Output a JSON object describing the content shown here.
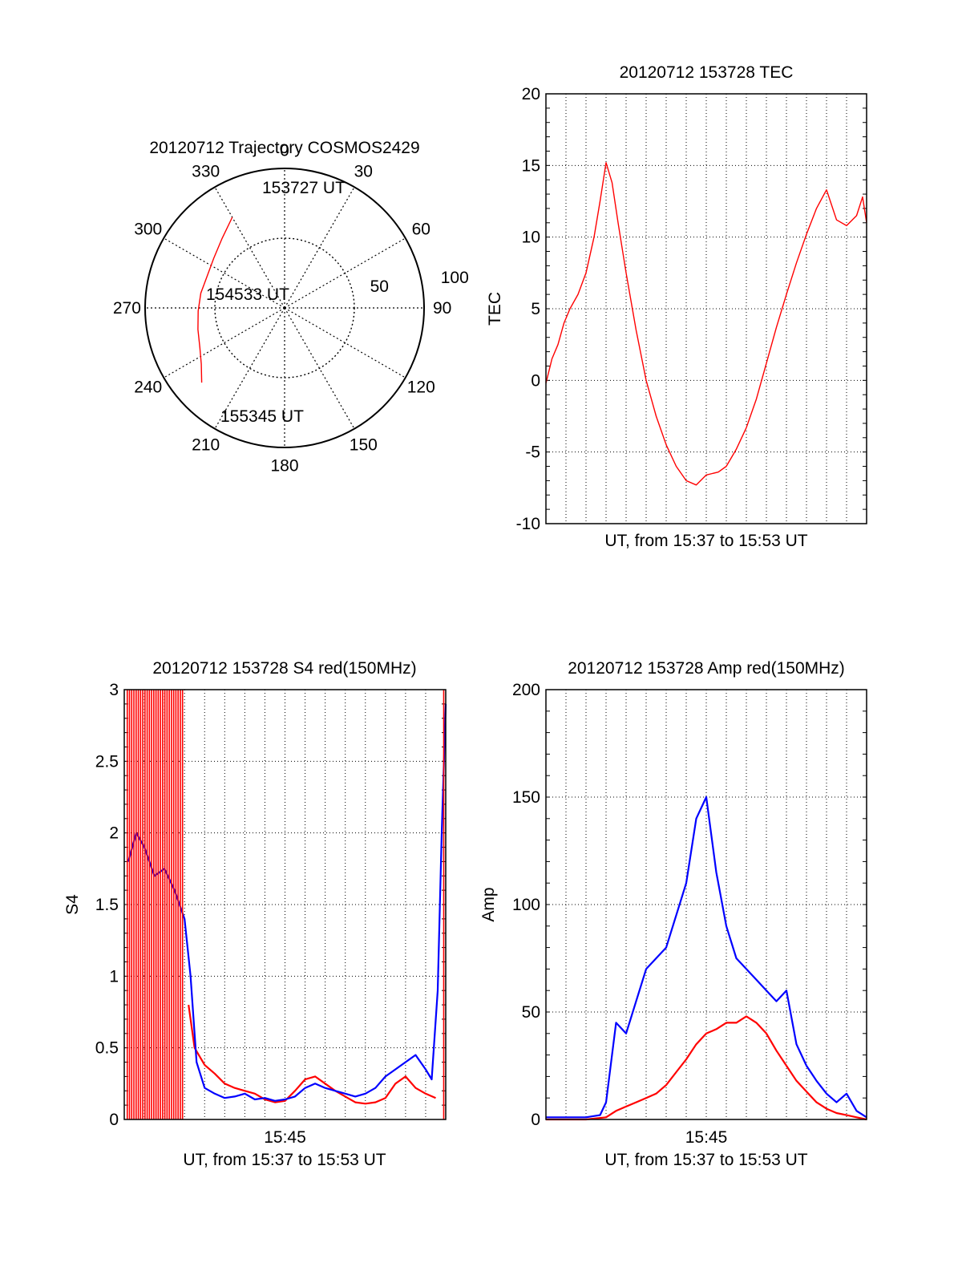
{
  "chart_data": [
    {
      "type": "polar",
      "title": "20120712 Trajectory COSMOS2429",
      "angle_labels": [
        "0",
        "30",
        "60",
        "90",
        "120",
        "150",
        "180",
        "210",
        "240",
        "270",
        "300",
        "330"
      ],
      "radial_labels": [
        "50",
        "100"
      ],
      "rlim": [
        0,
        100
      ],
      "grid": true,
      "series": [
        {
          "color": "#ff0000",
          "points": [
            {
              "az": 330,
              "zd": 75
            },
            {
              "az": 318,
              "zd": 67
            },
            {
              "az": 305,
              "zd": 62
            },
            {
              "az": 292,
              "zd": 60
            },
            {
              "az": 280,
              "zd": 61
            },
            {
              "az": 268,
              "zd": 62
            },
            {
              "az": 256,
              "zd": 64
            },
            {
              "az": 245,
              "zd": 67
            },
            {
              "az": 236,
              "zd": 72
            },
            {
              "az": 228,
              "zd": 80
            }
          ]
        }
      ],
      "annotations": [
        {
          "text": "153727 UT",
          "az": 342,
          "zd": 84
        },
        {
          "text": "154533 UT",
          "az": 288,
          "zd": 21
        },
        {
          "text": "155345 UT",
          "az": 204,
          "zd": 84
        }
      ]
    },
    {
      "type": "line",
      "title": "20120712 153728 TEC",
      "xlabel": "UT, from 15:37 to 15:53 UT",
      "ylabel": "TEC",
      "xlim": [
        0,
        16
      ],
      "ylim": [
        -10,
        20
      ],
      "yticks": [
        "20",
        "15",
        "10",
        "5",
        "0",
        "-5",
        "-10"
      ],
      "grid": true,
      "series": [
        {
          "color": "#ff0000",
          "x": [
            0,
            0.3,
            0.6,
            0.9,
            1.2,
            1.6,
            2.0,
            2.4,
            2.7,
            3.0,
            3.3,
            3.6,
            4.0,
            4.5,
            5.0,
            5.5,
            6.0,
            6.5,
            7.0,
            7.5,
            8.0,
            8.3,
            8.6,
            9.0,
            9.5,
            10.0,
            10.5,
            11.0,
            11.5,
            12.0,
            12.5,
            13.0,
            13.5,
            14.0,
            14.5,
            15.0,
            15.5,
            15.8,
            16.0
          ],
          "y": [
            -0.2,
            1.5,
            2.5,
            4,
            5,
            6,
            7.5,
            10,
            12.5,
            15.2,
            13.8,
            11,
            7.5,
            3.5,
            0,
            -2.5,
            -4.5,
            -6,
            -7,
            -7.3,
            -6.6,
            -6.5,
            -6.4,
            -6,
            -4.8,
            -3.3,
            -1.3,
            1.2,
            3.7,
            6,
            8.2,
            10.2,
            12,
            13.3,
            11.2,
            10.8,
            11.5,
            12.8,
            11
          ]
        }
      ]
    },
    {
      "type": "line",
      "title": "20120712 153728 S4 red(150MHz)",
      "xlabel": "UT, from 15:37 to 15:53 UT",
      "ylabel": "S4",
      "xlim": [
        0,
        16
      ],
      "ylim": [
        0,
        3
      ],
      "yticks": [
        "3",
        "2.5",
        "2",
        "1.5",
        "1",
        "0.5",
        "0"
      ],
      "xticks": [
        {
          "value": 8,
          "label": "15:45"
        }
      ],
      "grid": true,
      "series": [
        {
          "color": "#ff0000",
          "x": [
            3.2,
            3.5,
            4.0,
            4.5,
            5.0,
            5.5,
            6.0,
            6.5,
            7.0,
            7.5,
            8.0,
            8.5,
            9.0,
            9.5,
            10.0,
            10.5,
            11.0,
            11.5,
            12.0,
            12.5,
            13.0,
            13.5,
            14.0,
            14.5,
            15.0,
            15.5
          ],
          "y": [
            0.8,
            0.5,
            0.38,
            0.32,
            0.25,
            0.22,
            0.2,
            0.18,
            0.14,
            0.12,
            0.13,
            0.2,
            0.28,
            0.3,
            0.25,
            0.2,
            0.16,
            0.12,
            0.11,
            0.12,
            0.15,
            0.25,
            0.3,
            0.22,
            0.18,
            0.15
          ]
        },
        {
          "color": "#0000ff",
          "x": [
            0.2,
            0.6,
            1.0,
            1.5,
            2.0,
            2.5,
            3.0,
            3.3,
            3.6,
            4.0,
            4.5,
            5.0,
            5.5,
            6.0,
            6.5,
            7.0,
            7.5,
            8.0,
            8.5,
            9.0,
            9.5,
            10.0,
            10.5,
            11.0,
            11.5,
            12.0,
            12.5,
            13.0,
            13.5,
            14.0,
            14.5,
            15.0,
            15.3,
            15.6,
            15.8,
            16.0
          ],
          "y": [
            1.8,
            2.0,
            1.9,
            1.7,
            1.75,
            1.6,
            1.4,
            1.0,
            0.4,
            0.22,
            0.18,
            0.15,
            0.16,
            0.18,
            0.14,
            0.15,
            0.13,
            0.14,
            0.16,
            0.22,
            0.25,
            0.22,
            0.2,
            0.18,
            0.16,
            0.18,
            0.22,
            0.3,
            0.35,
            0.4,
            0.45,
            0.35,
            0.28,
            0.9,
            2.0,
            2.9
          ]
        }
      ]
    },
    {
      "type": "line",
      "title": "20120712 153728 Amp red(150MHz)",
      "xlabel": "UT, from 15:37 to 15:53 UT",
      "ylabel": "Amp",
      "xlim": [
        0,
        16
      ],
      "ylim": [
        0,
        200
      ],
      "yticks": [
        "200",
        "150",
        "100",
        "50",
        "0"
      ],
      "xticks": [
        {
          "value": 8,
          "label": "15:45"
        }
      ],
      "grid": true,
      "series": [
        {
          "color": "#0000ff",
          "x": [
            0,
            1,
            2,
            2.7,
            3.0,
            3.5,
            4.0,
            4.5,
            5.0,
            5.5,
            6.0,
            6.5,
            7.0,
            7.5,
            8.0,
            8.5,
            9.0,
            9.5,
            10.0,
            10.5,
            11.0,
            11.5,
            12.0,
            12.5,
            13.0,
            13.5,
            14.0,
            14.5,
            15.0,
            15.5,
            16.0
          ],
          "y": [
            1,
            1,
            1,
            2,
            8,
            45,
            40,
            55,
            70,
            75,
            80,
            95,
            110,
            140,
            150,
            115,
            90,
            75,
            70,
            65,
            60,
            55,
            60,
            35,
            25,
            18,
            12,
            8,
            12,
            4,
            1
          ]
        },
        {
          "color": "#ff0000",
          "x": [
            0,
            2,
            3.0,
            3.5,
            4.0,
            4.5,
            5.0,
            5.5,
            6.0,
            6.5,
            7.0,
            7.5,
            8.0,
            8.5,
            9.0,
            9.5,
            10.0,
            10.5,
            11.0,
            11.5,
            12.0,
            12.5,
            13.0,
            13.5,
            14.0,
            14.5,
            15.0,
            15.5,
            16.0
          ],
          "y": [
            0,
            0,
            1,
            4,
            6,
            8,
            10,
            12,
            16,
            22,
            28,
            35,
            40,
            42,
            45,
            45,
            48,
            45,
            40,
            32,
            25,
            18,
            13,
            8,
            5,
            3,
            2,
            1,
            0
          ]
        }
      ]
    }
  ]
}
